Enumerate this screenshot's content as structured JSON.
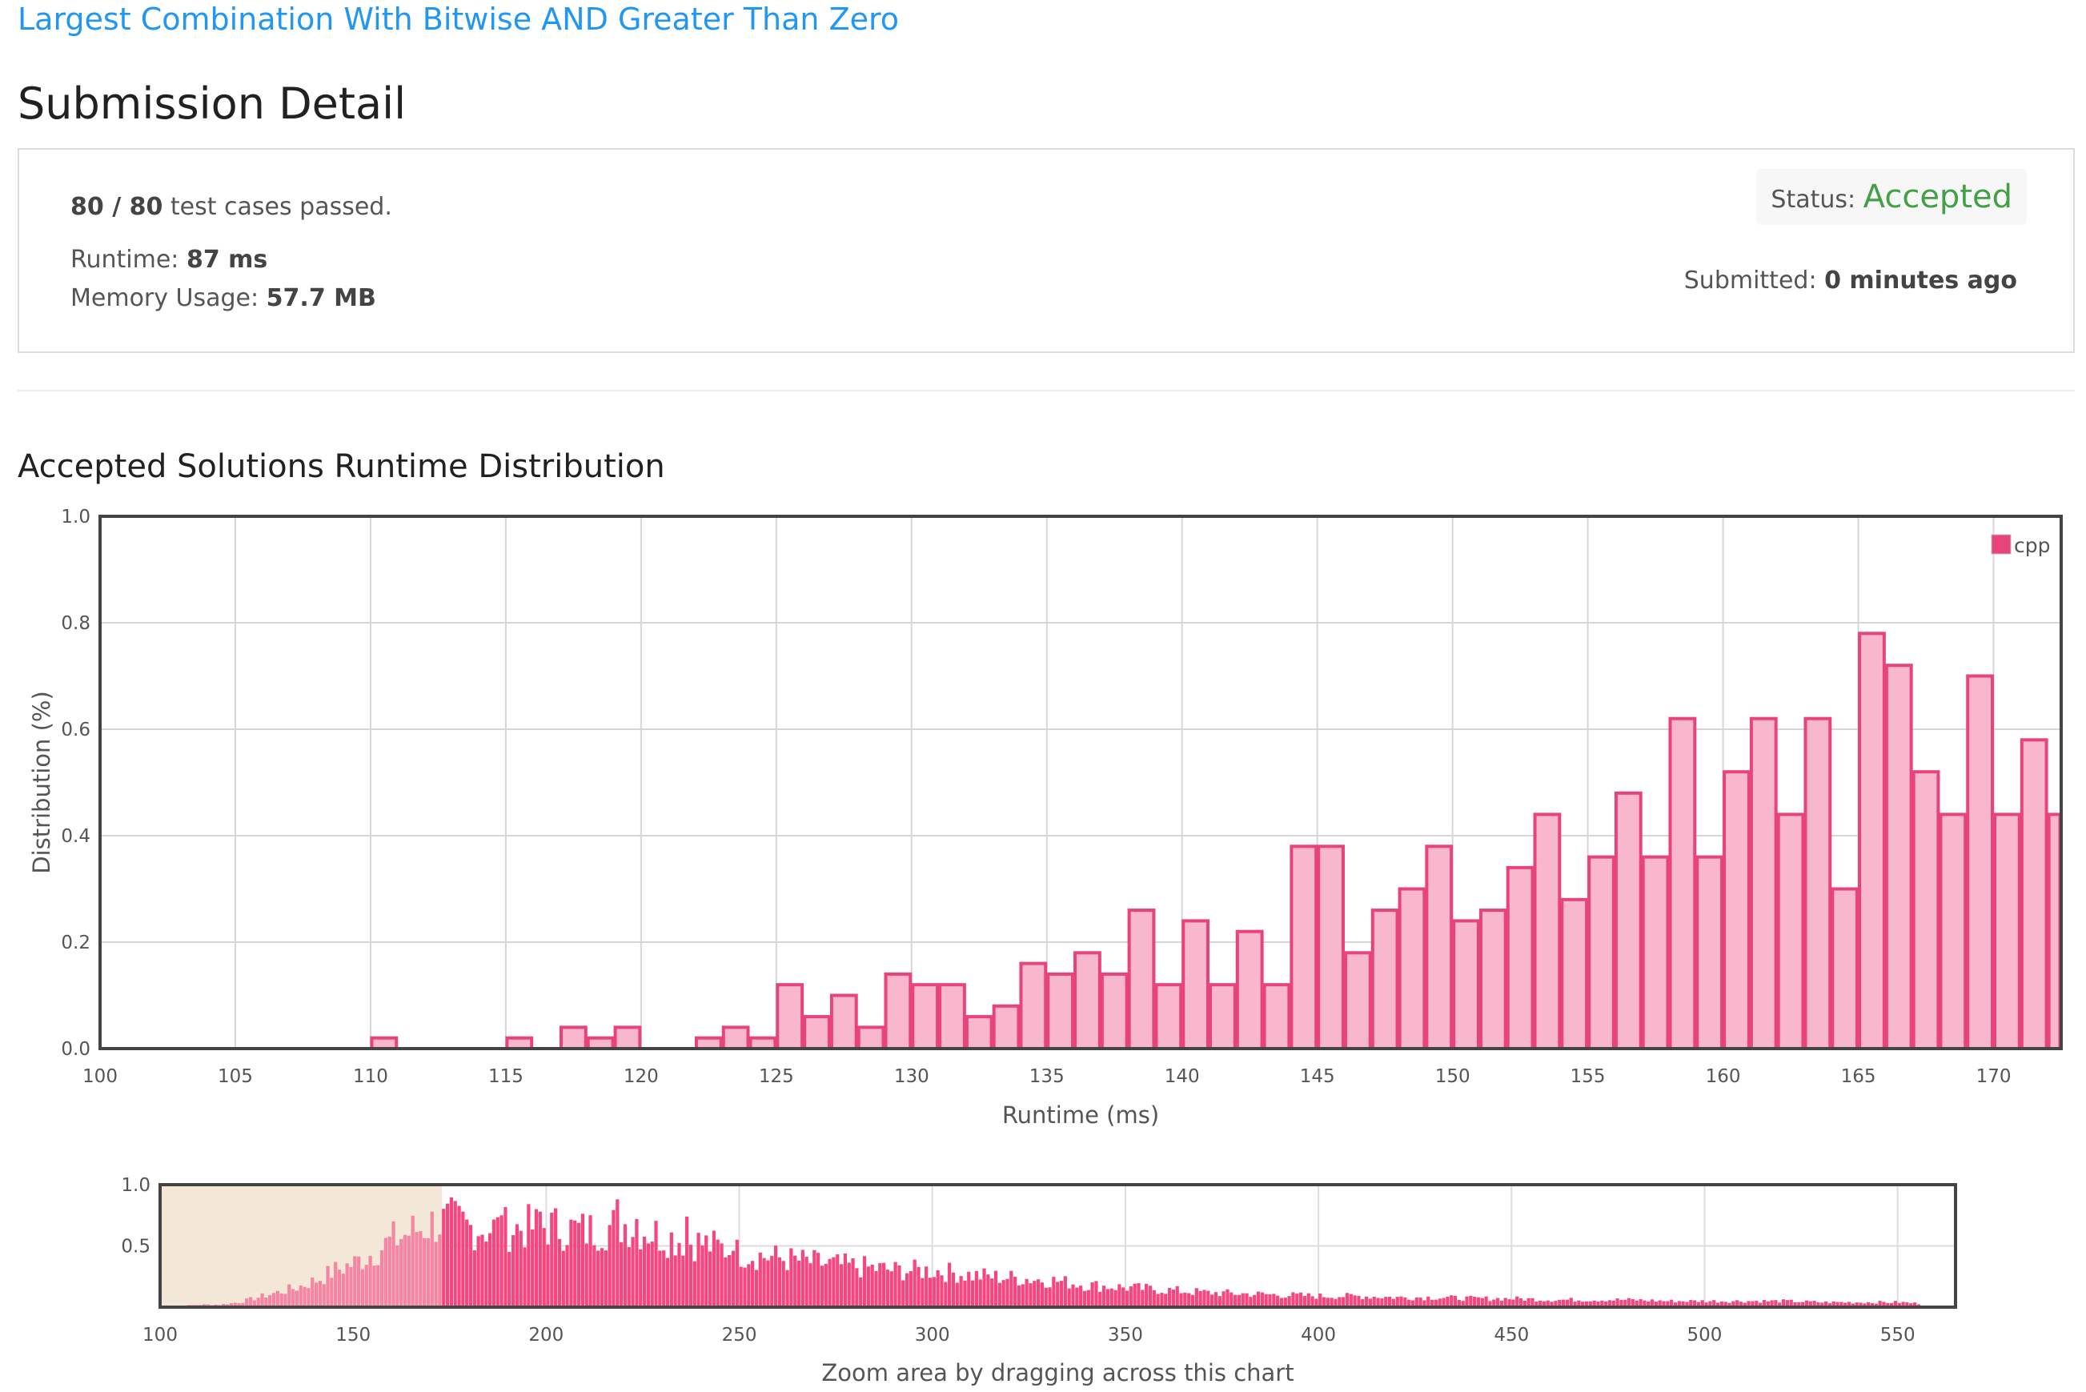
{
  "problem": {
    "title": "Largest Combination With Bitwise AND Greater Than Zero"
  },
  "page": {
    "title": "Submission Detail"
  },
  "submission": {
    "test_cases": "80 / 80",
    "test_cases_suffix": " test cases passed.",
    "runtime_label": "Runtime: ",
    "runtime_value": "87 ms",
    "memory_label": "Memory Usage: ",
    "memory_value": "57.7 MB",
    "status_label": "Status: ",
    "status_value": "Accepted",
    "submitted_label": "Submitted: ",
    "submitted_value": "0 minutes ago"
  },
  "chart_section": {
    "title": "Accepted Solutions Runtime Distribution",
    "zoom_hint": "Zoom area by dragging across this chart"
  },
  "colors": {
    "link": "#2196f3",
    "accepted": "#43a047",
    "bar_fill": "#f8b7cd",
    "bar_stroke": "#e8437a",
    "overview_fill": "#f7457e",
    "selection": "#f3e7d7"
  },
  "chart_data": [
    {
      "type": "bar",
      "name": "main-distribution",
      "xlabel": "Runtime (ms)",
      "ylabel": "Distribution (%)",
      "xlim": [
        100,
        172.5
      ],
      "ylim": [
        0,
        1.0
      ],
      "x_ticks": [
        100,
        105,
        110,
        115,
        120,
        125,
        130,
        135,
        140,
        145,
        150,
        155,
        160,
        165,
        170
      ],
      "y_ticks": [
        "0.0",
        "0.2",
        "0.4",
        "0.6",
        "0.8",
        "1.0"
      ],
      "grid": true,
      "legend": "top-right",
      "series": [
        {
          "name": "cpp",
          "x": [
            110,
            115,
            117,
            118,
            119,
            122,
            123,
            124,
            125,
            126,
            127,
            128,
            129,
            130,
            131,
            132,
            133,
            134,
            135,
            136,
            137,
            138,
            139,
            140,
            141,
            142,
            143,
            144,
            145,
            146,
            147,
            148,
            149,
            150,
            151,
            152,
            153,
            154,
            155,
            156,
            157,
            158,
            159,
            160,
            161,
            162,
            163,
            164,
            165,
            166,
            167,
            168,
            169,
            170,
            171,
            172
          ],
          "values": [
            0.02,
            0.02,
            0.04,
            0.02,
            0.04,
            0.02,
            0.04,
            0.02,
            0.12,
            0.06,
            0.1,
            0.04,
            0.14,
            0.12,
            0.12,
            0.06,
            0.08,
            0.16,
            0.14,
            0.18,
            0.14,
            0.26,
            0.12,
            0.24,
            0.12,
            0.22,
            0.12,
            0.38,
            0.38,
            0.18,
            0.26,
            0.3,
            0.38,
            0.24,
            0.26,
            0.34,
            0.44,
            0.28,
            0.36,
            0.48,
            0.36,
            0.62,
            0.36,
            0.52,
            0.62,
            0.44,
            0.62,
            0.3,
            0.78,
            0.72,
            0.52,
            0.44,
            0.7,
            0.44,
            0.58,
            0.44
          ]
        }
      ]
    },
    {
      "type": "bar",
      "name": "overview-distribution",
      "xlim": [
        100,
        565
      ],
      "ylim": [
        0,
        1.0
      ],
      "x_ticks": [
        100,
        150,
        200,
        250,
        300,
        350,
        400,
        450,
        500,
        550
      ],
      "y_ticks": [
        "0.5",
        "1.0"
      ],
      "grid": true,
      "selection": [
        100,
        173
      ],
      "profile": {
        "x": [
          100,
          105,
          110,
          115,
          120,
          125,
          130,
          135,
          140,
          145,
          150,
          155,
          160,
          165,
          170,
          175,
          180,
          190,
          200,
          210,
          220,
          230,
          240,
          250,
          260,
          270,
          280,
          290,
          300,
          310,
          320,
          330,
          340,
          350,
          360,
          370,
          380,
          390,
          400,
          410,
          420,
          430,
          440,
          450,
          460,
          470,
          480,
          490,
          500,
          510,
          520,
          530,
          540,
          550,
          555
        ],
        "values": [
          0.0,
          0.01,
          0.02,
          0.02,
          0.04,
          0.08,
          0.12,
          0.16,
          0.22,
          0.3,
          0.36,
          0.45,
          0.55,
          0.62,
          0.68,
          0.7,
          0.65,
          0.64,
          0.66,
          0.62,
          0.68,
          0.58,
          0.52,
          0.44,
          0.4,
          0.36,
          0.33,
          0.3,
          0.3,
          0.26,
          0.24,
          0.22,
          0.18,
          0.16,
          0.14,
          0.12,
          0.11,
          0.1,
          0.09,
          0.09,
          0.08,
          0.08,
          0.07,
          0.07,
          0.06,
          0.06,
          0.06,
          0.05,
          0.05,
          0.05,
          0.05,
          0.04,
          0.04,
          0.04,
          0.03
        ]
      },
      "peaks": {
        "x": [
          170,
          178,
          188,
          198,
          218,
          223,
          236,
          248
        ],
        "values": [
          0.78,
          0.78,
          0.75,
          0.78,
          0.88,
          0.72,
          0.74,
          0.46
        ]
      }
    }
  ]
}
